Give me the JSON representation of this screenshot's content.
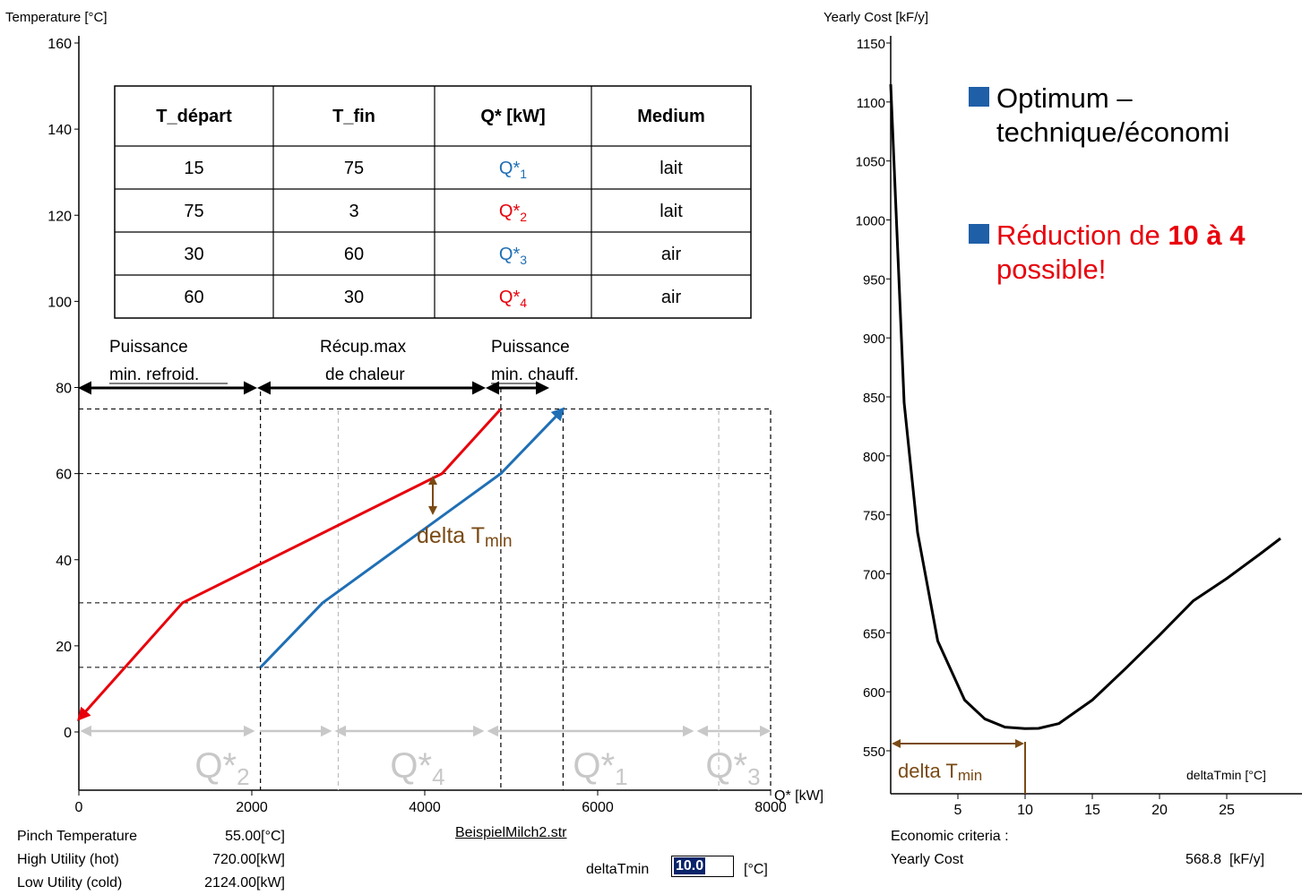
{
  "left_chart": {
    "ylabel": "Temperature [°C]",
    "xlabel": "Q* [kW]",
    "y_ticks": [
      "160",
      "140",
      "120",
      "100",
      "80",
      "60",
      "40",
      "20",
      "0"
    ],
    "x_ticks": [
      "0",
      "2000",
      "4000",
      "6000",
      "8000"
    ],
    "table": {
      "headers": [
        "T_départ",
        "T_fin",
        "Q* [kW]",
        "Medium"
      ],
      "rows": [
        {
          "t_start": "15",
          "t_end": "75",
          "q": "Q*",
          "sub": "1",
          "medium": "lait",
          "q_color": "#1f6fb5"
        },
        {
          "t_start": "75",
          "t_end": "3",
          "q": "Q*",
          "sub": "2",
          "medium": "lait",
          "q_color": "#e8000b"
        },
        {
          "t_start": "30",
          "t_end": "60",
          "q": "Q*",
          "sub": "3",
          "medium": "air",
          "q_color": "#1f6fb5"
        },
        {
          "t_start": "60",
          "t_end": "30",
          "q": "Q*",
          "sub": "4",
          "medium": "air",
          "q_color": "#e8000b"
        }
      ]
    },
    "labels": {
      "cooling_1": "Puissance",
      "cooling_2": "min. refroid.",
      "recovery_1": "Récup.max",
      "recovery_2": "de chaleur",
      "heating_1": "Puissance",
      "heating_2": "min. chauff.",
      "delta": "delta T",
      "delta_sub": "min"
    },
    "q_segments": [
      {
        "label": "Q*",
        "sub": "2"
      },
      {
        "label": "Q*",
        "sub": "4"
      },
      {
        "label": "Q*",
        "sub": "1"
      },
      {
        "label": "Q*",
        "sub": "3"
      }
    ],
    "info": [
      {
        "label": "Pinch Temperature",
        "value": "55.00",
        "unit": "[°C]"
      },
      {
        "label": "High Utility (hot)",
        "value": "720.00",
        "unit": "[kW]"
      },
      {
        "label": "Low Utility (cold)",
        "value": "2124.00",
        "unit": "[kW]"
      }
    ],
    "file": "BeispielMilch2.str",
    "delta_field_label": "deltaTmin",
    "delta_field_value": "10.0",
    "delta_field_unit": "[°C]"
  },
  "right_chart": {
    "ylabel": "Yearly Cost [kF/y]",
    "xlabel": "deltaTmin [°C]",
    "y_ticks": [
      "1150",
      "1100",
      "1050",
      "1000",
      "950",
      "900",
      "850",
      "800",
      "750",
      "700",
      "650",
      "600",
      "550"
    ],
    "x_ticks": [
      "5",
      "10",
      "15",
      "20",
      "25"
    ],
    "delta_label": "delta T",
    "delta_sub": "min",
    "criteria_title": "Economic criteria :",
    "criteria_label": "Yearly Cost",
    "criteria_value": "568.8",
    "criteria_unit": "[kF/y]"
  },
  "bullets": [
    {
      "lines": [
        "Optimum –",
        "technique/économi"
      ],
      "color": "#000000"
    },
    {
      "lines": [
        "Réduction de 10 à 4",
        "possible!"
      ],
      "color": "#e8000b"
    }
  ],
  "chart_data": [
    {
      "type": "line",
      "title": "",
      "xlabel": "Q* [kW]",
      "ylabel": "Temperature [°C]",
      "xlim": [
        0,
        8000
      ],
      "ylim": [
        -10,
        160
      ],
      "series": [
        {
          "x": [
            0,
            1200,
            4200,
            4880
          ],
          "y": [
            3,
            30,
            60,
            75
          ],
          "color": "#e8000b"
        },
        {
          "x": [
            2100,
            2820,
            4880,
            5600
          ],
          "y": [
            15,
            30,
            60,
            75
          ],
          "color": "#1f6fb5"
        }
      ]
    },
    {
      "type": "line",
      "title": "",
      "xlabel": "deltaTmin [°C]",
      "ylabel": "Yearly Cost [kF/y]",
      "xlim": [
        0,
        30
      ],
      "ylim": [
        505,
        1150
      ],
      "series": [
        {
          "x": [
            0,
            1,
            2,
            3.5,
            5.5,
            7,
            8.5,
            10,
            11,
            12.5,
            15,
            17.5,
            20,
            22.5,
            25,
            27.5,
            29
          ],
          "y": [
            1115,
            845,
            735,
            643,
            593,
            577,
            570,
            568.8,
            569,
            573,
            593,
            620,
            648,
            677,
            696,
            717,
            730
          ],
          "color": "#000000"
        }
      ]
    }
  ]
}
